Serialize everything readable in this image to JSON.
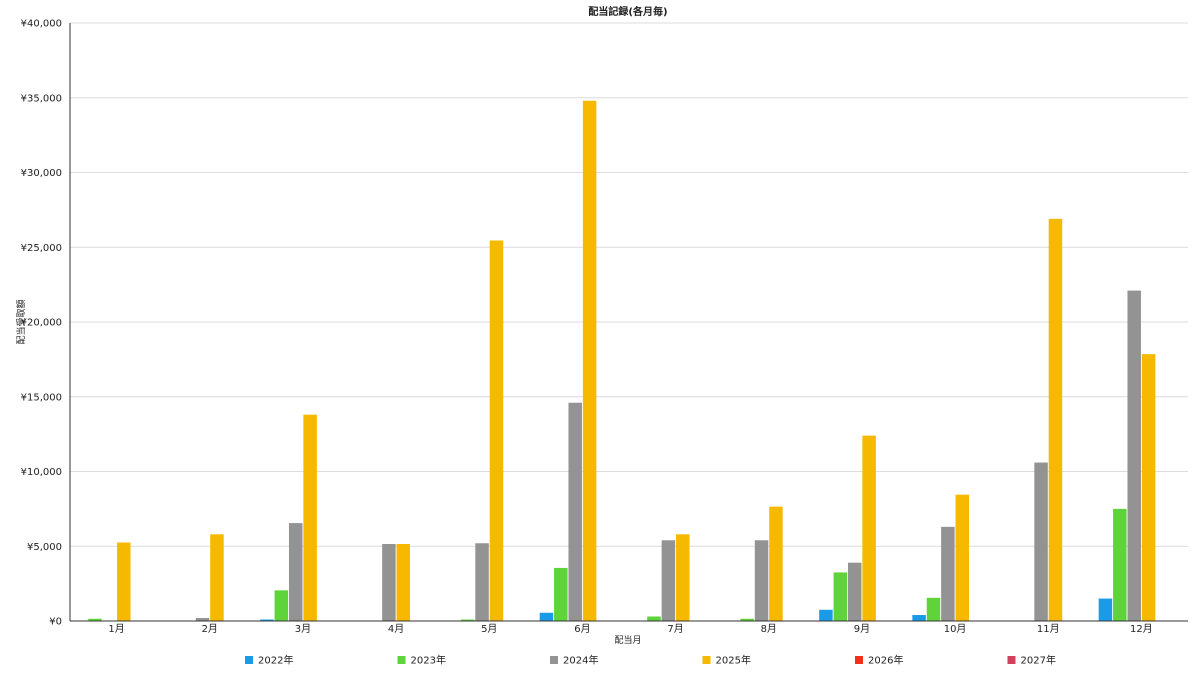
{
  "chart_data": {
    "type": "bar",
    "title": "配当記録(各月毎)",
    "xlabel": "配当月",
    "ylabel": "配当受取額",
    "ylim": [
      0,
      40000
    ],
    "y_ticks": [
      "¥0",
      "¥5,000",
      "¥10,000",
      "¥15,000",
      "¥20,000",
      "¥25,000",
      "¥30,000",
      "¥35,000",
      "¥40,000"
    ],
    "grid": true,
    "legend_position": "bottom",
    "categories": [
      "1月",
      "2月",
      "3月",
      "4月",
      "5月",
      "6月",
      "7月",
      "8月",
      "9月",
      "10月",
      "11月",
      "12月"
    ],
    "series": [
      {
        "name": "2022年",
        "color": "#1a9be8",
        "values": [
          0,
          0,
          100,
          0,
          0,
          550,
          0,
          0,
          750,
          400,
          0,
          1500
        ]
      },
      {
        "name": "2023年",
        "color": "#5fd43a",
        "values": [
          150,
          0,
          2050,
          0,
          100,
          3550,
          300,
          150,
          3250,
          1550,
          0,
          7500
        ]
      },
      {
        "name": "2024年",
        "color": "#939393",
        "values": [
          0,
          200,
          6550,
          5150,
          5200,
          14600,
          5400,
          5400,
          3900,
          6300,
          10600,
          22100
        ]
      },
      {
        "name": "2025年",
        "color": "#f6b900",
        "values": [
          5250,
          5800,
          13800,
          5150,
          25450,
          34800,
          5800,
          7650,
          12400,
          8450,
          26900,
          17850
        ]
      },
      {
        "name": "2026年",
        "color": "#f23018",
        "values": [
          0,
          0,
          0,
          0,
          0,
          0,
          0,
          0,
          0,
          0,
          0,
          0
        ]
      },
      {
        "name": "2027年",
        "color": "#d2405c",
        "values": [
          0,
          0,
          0,
          0,
          0,
          0,
          0,
          0,
          0,
          0,
          0,
          0
        ]
      }
    ]
  }
}
